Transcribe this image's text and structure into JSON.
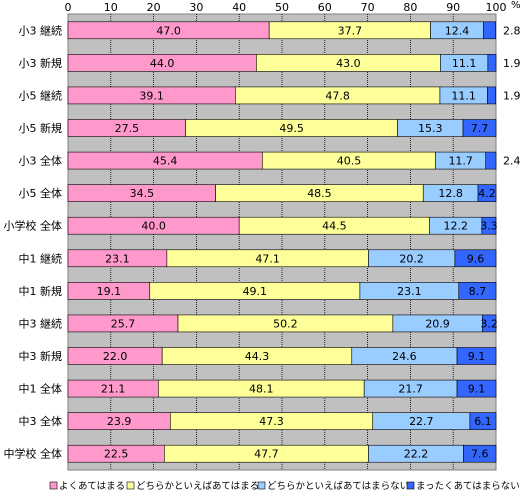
{
  "chart_data": {
    "type": "bar",
    "orientation": "horizontal",
    "stacked": true,
    "unit_label": "%",
    "xlim": [
      0,
      100
    ],
    "xticks": [
      "0",
      "10",
      "20",
      "30",
      "40",
      "50",
      "60",
      "70",
      "80",
      "90",
      "100"
    ],
    "grid": true,
    "legend_position": "bottom",
    "categories": [
      "小3 継続",
      "小3 新規",
      "小5 継続",
      "小5 新規",
      "小3 全体",
      "小5 全体",
      "小学校 全体",
      "中1 継続",
      "中1 新規",
      "中3 継続",
      "中3 新規",
      "中1 全体",
      "中3 全体",
      "中学校 全体"
    ],
    "series": [
      {
        "name": "よくあてはまる",
        "color": "#ff99cc",
        "values": [
          47.0,
          44.0,
          39.1,
          27.5,
          45.4,
          34.5,
          40.0,
          23.1,
          19.1,
          25.7,
          22.0,
          21.1,
          23.9,
          22.5
        ],
        "labels": [
          "47.0",
          "44.0",
          "39.1",
          "27.5",
          "45.4",
          "34.5",
          "40.0",
          "23.1",
          "19.1",
          "25.7",
          "22.0",
          "21.1",
          "23.9",
          "22.5"
        ]
      },
      {
        "name": "どちらかといえばあてはまる",
        "color": "#ffff99",
        "values": [
          37.7,
          43.0,
          47.8,
          49.5,
          40.5,
          48.5,
          44.5,
          47.1,
          49.1,
          50.2,
          44.3,
          48.1,
          47.3,
          47.7
        ],
        "labels": [
          "37.7",
          "43.0",
          "47.8",
          "49.5",
          "40.5",
          "48.5",
          "44.5",
          "47.1",
          "49.1",
          "50.2",
          "44.3",
          "48.1",
          "47.3",
          "47.7"
        ]
      },
      {
        "name": "どちらかといえばあてはまらない",
        "color": "#99ccff",
        "values": [
          12.4,
          11.1,
          11.1,
          15.3,
          11.7,
          12.8,
          12.2,
          20.2,
          23.1,
          20.9,
          24.6,
          21.7,
          22.7,
          22.2
        ],
        "labels": [
          "12.4",
          "11.1",
          "11.1",
          "15.3",
          "11.7",
          "12.8",
          "12.2",
          "20.2",
          "23.1",
          "20.9",
          "24.6",
          "21.7",
          "22.7",
          "22.2"
        ]
      },
      {
        "name": "まったくあてはまらない",
        "color": "#3366ff",
        "values": [
          2.8,
          1.9,
          1.9,
          7.7,
          2.4,
          4.2,
          3.3,
          9.6,
          8.7,
          3.2,
          9.1,
          9.1,
          6.1,
          7.6
        ],
        "labels": [
          "2.8",
          "1.9",
          "1.9",
          "7.7",
          "2.4",
          "4.2",
          "3.3",
          "9.6",
          "8.7",
          "3.2",
          "9.1",
          "9.1",
          "6.1",
          "7.6"
        ],
        "label_outside": [
          true,
          true,
          true,
          false,
          true,
          false,
          false,
          false,
          false,
          false,
          false,
          false,
          false,
          false
        ]
      }
    ]
  }
}
